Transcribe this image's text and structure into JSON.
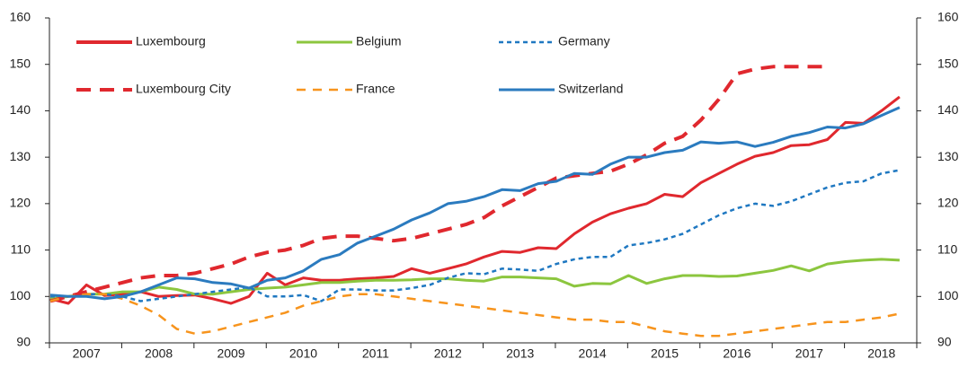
{
  "chart_data": {
    "type": "line",
    "categories": [
      null,
      null,
      "2007",
      null,
      null,
      null,
      "2008",
      null,
      null,
      null,
      "2009",
      null,
      null,
      null,
      "2010",
      null,
      null,
      null,
      "2011",
      null,
      null,
      null,
      "2012",
      null,
      null,
      null,
      "2013",
      null,
      null,
      null,
      "2014",
      null,
      null,
      null,
      "2015",
      null,
      null,
      null,
      "2016",
      null,
      null,
      null,
      "2017",
      null,
      null,
      null,
      "2018",
      null
    ],
    "ylim": [
      90,
      160
    ],
    "yticks": [
      90,
      100,
      110,
      120,
      130,
      140,
      150,
      160
    ],
    "series": [
      {
        "name": "Luxembourg",
        "color": "#e0282e",
        "dash": "solid",
        "values": [
          99.5,
          98.5,
          102.5,
          100.2,
          100.5,
          101,
          100,
          100.2,
          100.3,
          99.5,
          98.5,
          100,
          105,
          102.5,
          104,
          103.5,
          103.5,
          103.8,
          104,
          104.3,
          106,
          105,
          106,
          107,
          108.5,
          109.7,
          109.5,
          110.5,
          110.3,
          113.5,
          116,
          117.8,
          119,
          120,
          122,
          121.5,
          124.5,
          126.5,
          128.5,
          130.2,
          131,
          132.5,
          132.7,
          133.8,
          137.5,
          137.3,
          140,
          143
        ]
      },
      {
        "name": "Belgium",
        "color": "#8cc63f",
        "dash": "solid",
        "values": [
          99.5,
          100,
          100.5,
          100.5,
          101,
          101,
          102,
          101.5,
          100.5,
          100.5,
          101,
          101.5,
          101.8,
          102,
          102.5,
          103,
          103,
          103.3,
          103.5,
          103.5,
          103.6,
          103.8,
          103.8,
          103.5,
          103.3,
          104.2,
          104.2,
          104,
          103.8,
          102.2,
          102.8,
          102.7,
          104.5,
          102.8,
          103.8,
          104.5,
          104.5,
          104.3,
          104.4,
          105,
          105.6,
          106.6,
          105.5,
          107,
          107.5,
          107.8,
          108,
          107.8
        ]
      },
      {
        "name": "Germany",
        "color": "#1f78c1",
        "dash": "dot",
        "values": [
          100,
          100,
          100.5,
          100.5,
          100,
          99,
          99.5,
          100,
          100.5,
          101,
          101.5,
          102,
          100,
          100,
          100.3,
          99,
          101.5,
          101.5,
          101.3,
          101.3,
          101.8,
          102.5,
          104,
          105,
          104.8,
          106,
          105.8,
          105.5,
          107,
          108,
          108.5,
          108.5,
          111,
          111.5,
          112.3,
          113.5,
          115.5,
          117.5,
          119,
          120,
          119.5,
          120.5,
          122,
          123.5,
          124.5,
          124.8,
          126.5,
          127.2
        ]
      },
      {
        "name": "Luxembourg City",
        "color": "#e0282e",
        "dash": "longdash",
        "values": [
          99,
          100,
          101,
          102,
          103,
          104,
          104.5,
          104.5,
          105,
          106,
          107,
          108.5,
          109.5,
          110,
          111,
          112.5,
          113,
          113,
          112.5,
          112,
          112.5,
          113.5,
          114.5,
          115.5,
          117,
          119.5,
          121.5,
          123.5,
          125.5,
          126,
          126.5,
          127,
          128.5,
          130.5,
          133,
          134.5,
          138,
          142.5,
          148,
          149,
          149.5,
          149.5,
          149.5,
          149.5,
          null,
          null,
          null,
          null
        ]
      },
      {
        "name": "France",
        "color": "#f7941d",
        "dash": "dash",
        "values": [
          99,
          100,
          100.5,
          100.5,
          99.5,
          98,
          96,
          93,
          92,
          92.5,
          93.5,
          94.5,
          95.5,
          96.5,
          98,
          99,
          100,
          100.5,
          100.5,
          100,
          99.5,
          99,
          98.5,
          98,
          97.5,
          97,
          96.5,
          96,
          95.5,
          95,
          95,
          94.5,
          94.5,
          93.5,
          92.5,
          92,
          91.5,
          91.5,
          92,
          92.5,
          93,
          93.5,
          94,
          94.5,
          94.5,
          95,
          95.5,
          96.3
        ]
      },
      {
        "name": "Switzerland",
        "color": "#2b7bbf",
        "dash": "solid",
        "values": [
          100.3,
          100,
          100,
          99.5,
          100,
          101,
          102.5,
          104,
          103.8,
          103,
          102.7,
          101.8,
          103.5,
          104,
          105.5,
          108,
          109,
          111.5,
          113,
          114.5,
          116.5,
          118,
          120,
          120.5,
          121.5,
          123,
          122.8,
          124.3,
          124.8,
          126.5,
          126.3,
          128.5,
          130,
          130,
          131,
          131.5,
          133.3,
          133,
          133.3,
          132.3,
          133.2,
          134.5,
          135.3,
          136.5,
          136.3,
          137.2,
          139,
          140.7
        ]
      }
    ]
  }
}
